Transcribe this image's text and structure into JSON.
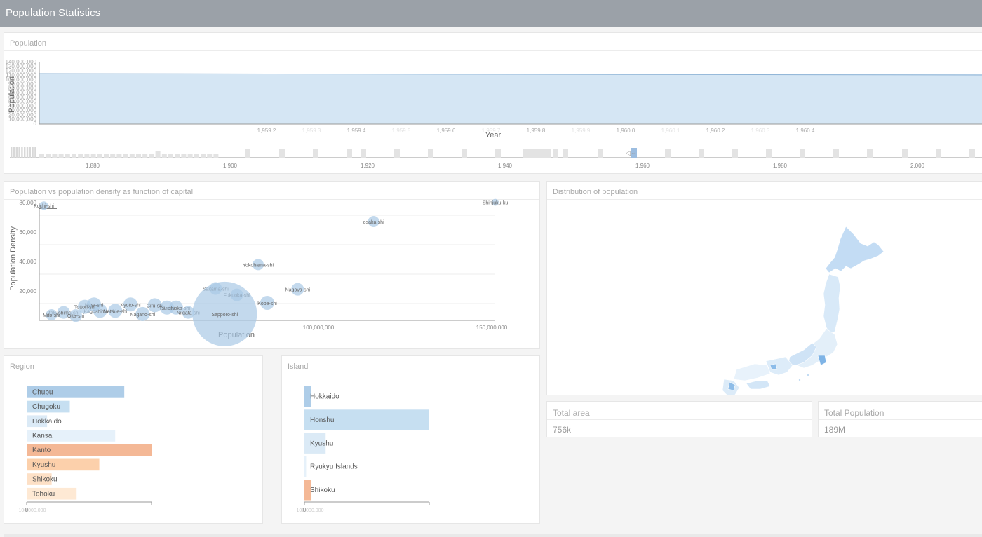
{
  "header": {
    "title": "Population Statistics"
  },
  "population_panel": {
    "title": "Population",
    "ylabel": "Population",
    "xlabel": "Year",
    "y_ticks": [
      "140,000,000",
      "130,000,000",
      "120,000,000",
      "110,000,000",
      "100,000,000",
      "90,000,000",
      "80,000,000",
      "70,000,000",
      "60,000,000",
      "50,000,000",
      "40,000,000",
      "30,000,000",
      "20,000,000",
      "10,000,000",
      "0"
    ],
    "top_x_ticks": [
      "1,959.2",
      "1,959.3",
      "1,959.4",
      "1,959.5",
      "1,959.6",
      "1,959.7",
      "1,959.8",
      "1,959.9",
      "1,960.0",
      "1,960.1",
      "1,960.2",
      "1,960.3",
      "1,960.4"
    ],
    "brush_x_ticks": [
      "1,880",
      "1,900",
      "1,920",
      "1,940",
      "1,960",
      "1,980",
      "2,000"
    ]
  },
  "scatter_panel": {
    "title": "Population vs population density as function of capital",
    "xlabel": "Population",
    "ylabel": "Population Density",
    "x_ticks": [
      "100,000,000",
      "150,000,000"
    ],
    "y_ticks": [
      "80,000",
      "60,000",
      "40,000",
      "20,000"
    ],
    "points": [
      {
        "label": "Shinjuku-ku",
        "x": 150000000,
        "y": 74000,
        "r": 5
      },
      {
        "label": "osaka-shi",
        "x": 110000000,
        "y": 62000,
        "r": 8
      },
      {
        "label": "Yokohama-shi",
        "x": 72000000,
        "y": 35000,
        "r": 8
      },
      {
        "label": "Nagoya-shi",
        "x": 85000000,
        "y": 19500,
        "r": 9
      },
      {
        "label": "Saitama-shi",
        "x": 58000000,
        "y": 20000,
        "r": 9
      },
      {
        "label": "Fukuoka-shi",
        "x": 65000000,
        "y": 16000,
        "r": 9
      },
      {
        "label": "Kobe-shi",
        "x": 75000000,
        "y": 11000,
        "r": 10
      },
      {
        "label": "Shizuoka-shi",
        "x": 45000000,
        "y": 8000,
        "r": 10
      },
      {
        "label": "Niigata-shi",
        "x": 49000000,
        "y": 5000,
        "r": 9
      },
      {
        "label": "Sapporo-shi",
        "x": 61000000,
        "y": 4000,
        "r": 46
      },
      {
        "label": "Kyoto-shi",
        "x": 30000000,
        "y": 10000,
        "r": 10
      },
      {
        "label": "Nagano-shi",
        "x": 34000000,
        "y": 4000,
        "r": 10
      },
      {
        "label": "Kagoshima-shi",
        "x": 20000000,
        "y": 6000,
        "r": 10
      },
      {
        "label": "Nara-shi",
        "x": 18000000,
        "y": 10000,
        "r": 10
      },
      {
        "label": "Tokushima-shi",
        "x": 8000000,
        "y": 5000,
        "r": 9
      },
      {
        "label": "Mito-shi",
        "x": 4000000,
        "y": 3500,
        "r": 8
      },
      {
        "label": "Oita-shi",
        "x": 12000000,
        "y": 3000,
        "r": 9
      },
      {
        "label": "Kochi-shi",
        "x": 1500000,
        "y": 72000,
        "r": 6
      },
      {
        "label": "Tottori-shi",
        "x": 15000000,
        "y": 8500,
        "r": 10
      },
      {
        "label": "Matsue-shi",
        "x": 25000000,
        "y": 6000,
        "r": 10
      },
      {
        "label": "Gifu-shi",
        "x": 38000000,
        "y": 9500,
        "r": 10
      },
      {
        "label": "Tsu-shi",
        "x": 42000000,
        "y": 8000,
        "r": 10
      }
    ]
  },
  "map_panel": {
    "title": "Distribution of population"
  },
  "region_panel": {
    "title": "Region",
    "items": [
      {
        "label": "Chubu",
        "value": 21.5,
        "color": "#aecde8"
      },
      {
        "label": "Chugoku",
        "value": 9.5,
        "color": "#c6dff1"
      },
      {
        "label": "Hokkaido",
        "value": 4.5,
        "color": "#dbeaf6"
      },
      {
        "label": "Kansai",
        "value": 19.5,
        "color": "#e6f1fa"
      },
      {
        "label": "Kanto",
        "value": 27.5,
        "color": "#f4b896"
      },
      {
        "label": "Kyushu",
        "value": 16,
        "color": "#fcd0ab"
      },
      {
        "label": "Shikoku",
        "value": 5.5,
        "color": "#fde0c6"
      },
      {
        "label": "Tohoku",
        "value": 11,
        "color": "#fee9d4"
      }
    ],
    "max": 27.5,
    "tick_labels": [
      "100,000,000",
      "0"
    ]
  },
  "island_panel": {
    "title": "Island",
    "items": [
      {
        "label": "Hokkaido",
        "value": 5.4,
        "color": "#aecde8"
      },
      {
        "label": "Honshu",
        "value": 103,
        "color": "#c6dff1"
      },
      {
        "label": "Kyushu",
        "value": 17.5,
        "color": "#dbeaf6"
      },
      {
        "label": "Ryukyu Islands",
        "value": 1.4,
        "color": "#e6f1fa"
      },
      {
        "label": "Shikoku",
        "value": 5.8,
        "color": "#f4b896"
      }
    ],
    "max": 103,
    "tick_labels": [
      "100,000,000",
      "0"
    ]
  },
  "total_area": {
    "title": "Total area",
    "value": "756k"
  },
  "total_population": {
    "title": "Total Population",
    "value": "189M"
  },
  "colors": {
    "header": "#9ba1a8",
    "area_fill": "#d5e6f4",
    "area_line": "#8fb4d6",
    "bubble": "#a9c9e6"
  }
}
